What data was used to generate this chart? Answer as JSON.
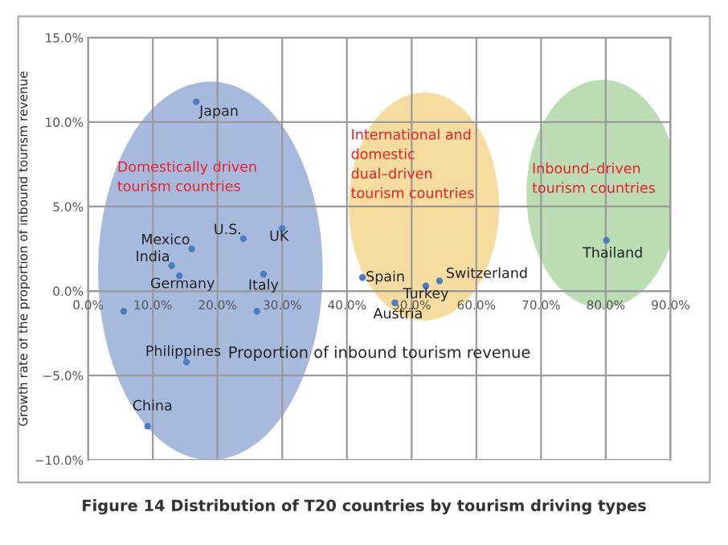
{
  "chart_data": {
    "type": "scatter",
    "title": "Figure 14 Distribution of T20 countries by tourism driving types",
    "xlabel": "Proportion of inbound tourism revenue",
    "ylabel": "Growth rate of the proportion of inbound tourism revenue",
    "x": [
      16.7,
      16.0,
      24.0,
      30.0,
      12.9,
      14.1,
      27.1,
      26.1,
      5.5,
      15.2,
      9.2,
      42.4,
      47.4,
      52.2,
      54.3,
      80.1
    ],
    "series": [
      {
        "color": "#4a7cc2",
        "values": [
          11.2,
          2.5,
          3.1,
          3.7,
          1.5,
          0.9,
          1.0,
          -1.2,
          -1.2,
          -4.2,
          -8.0,
          0.8,
          -0.7,
          0.3,
          0.6,
          3.0
        ]
      }
    ],
    "marker": "circle",
    "grid": true,
    "xlim": [
      0,
      90
    ],
    "ylim": [
      -10,
      15
    ],
    "xticks": [
      {
        "value": 0,
        "label": "0.0%"
      },
      {
        "value": 10,
        "label": "10.0%"
      },
      {
        "value": 20,
        "label": "20.0%"
      },
      {
        "value": 30,
        "label": "30.0%"
      },
      {
        "value": 40,
        "label": "40.0%"
      },
      {
        "value": 50,
        "label": "50.0%"
      },
      {
        "value": 60,
        "label": "60.0%"
      },
      {
        "value": 70,
        "label": "70.0%"
      },
      {
        "value": 80,
        "label": "80.0%"
      },
      {
        "value": 90,
        "label": "90.0%"
      }
    ],
    "yticks": [
      {
        "value": -10,
        "label": "−10.0%"
      },
      {
        "value": -5,
        "label": "−5.0%"
      },
      {
        "value": 0,
        "label": "0.0%"
      },
      {
        "value": 5,
        "label": "5.0%"
      },
      {
        "value": 10,
        "label": "10.0%"
      },
      {
        "value": 15,
        "label": "15.0%"
      }
    ],
    "annotations": [
      {
        "text": "Japan",
        "x": 16.7,
        "y": 11.2
      },
      {
        "text": "Mexico",
        "x": 16.0,
        "y": 2.5
      },
      {
        "text": "U.S.",
        "x": 24.0,
        "y": 3.1
      },
      {
        "text": "UK",
        "x": 30.0,
        "y": 3.7
      },
      {
        "text": "India",
        "x": 12.9,
        "y": 1.5
      },
      {
        "text": "Germany",
        "x": 14.1,
        "y": 0.9
      },
      {
        "text": "Italy",
        "x": 27.1,
        "y": 1.0
      },
      {
        "text": "Philippines",
        "x": 15.2,
        "y": -4.2
      },
      {
        "text": "China",
        "x": 9.2,
        "y": -8.0
      },
      {
        "text": "Spain",
        "x": 42.4,
        "y": 0.8
      },
      {
        "text": "Austria",
        "x": 47.4,
        "y": -0.7
      },
      {
        "text": "Turkey",
        "x": 52.2,
        "y": 0.3
      },
      {
        "text": "Switzerland",
        "x": 54.3,
        "y": 0.6
      },
      {
        "text": "Thailand",
        "x": 80.1,
        "y": 3.0
      },
      "Domestically driven\ntourism countries",
      "International and\ndomestic\ndual–driven\ntourism countries",
      "Inbound–driven\ntourism countries"
    ]
  }
}
